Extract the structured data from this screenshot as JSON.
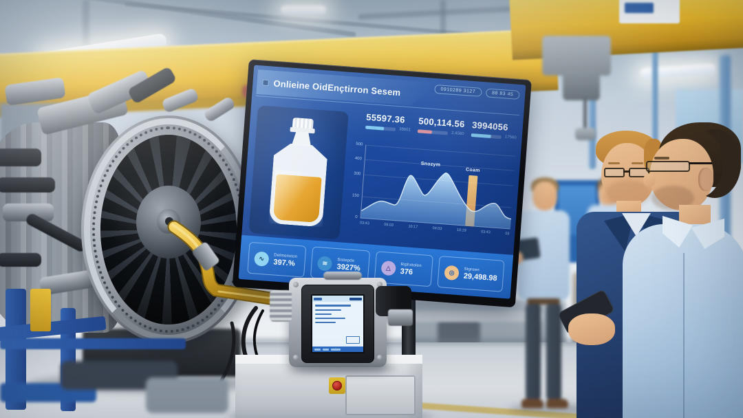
{
  "monitor": {
    "title": "Onlieine OidEnçtirron Sesem",
    "badges": [
      {
        "text": "0910289 3127"
      },
      {
        "text": "88 83 45"
      }
    ],
    "kpis": [
      {
        "value": "55597.36",
        "sub": "38601",
        "bar_color": "#7ec8f0",
        "bar_pct": 62
      },
      {
        "value": "500,114.56",
        "sub": "2,4560",
        "bar_color": "#d68f9b",
        "bar_pct": 48
      },
      {
        "value": "3994056",
        "sub": "17560",
        "bar_color": "#7ec8f0",
        "bar_pct": 66
      }
    ],
    "chart": {
      "type": "area",
      "y_ticks": [
        "500",
        "400",
        "300",
        "150",
        "0"
      ],
      "x_ticks": [
        "03:43",
        "09:03",
        "10:17",
        "04:03",
        "10:19",
        "03:43",
        "03"
      ],
      "annotations": [
        {
          "label": "Snozym"
        },
        {
          "label": "Coam"
        }
      ],
      "series": [
        {
          "name": "oil-condition-trend",
          "x": [
            0,
            0.124,
            0.217,
            0.3,
            0.4,
            0.535,
            0.7,
            0.77,
            0.88,
            0.96,
            1.0
          ],
          "values": [
            50,
            125,
            110,
            305,
            195,
            345,
            130,
            105,
            170,
            85,
            68
          ]
        }
      ],
      "bar_marker": {
        "x": 0.73,
        "value": 345
      },
      "area_color": "#a9d6f5",
      "bar_color": "#e9b36a"
    },
    "stats": [
      {
        "label": "Delmonston",
        "value": "397.%",
        "icon_glyph": "∿",
        "icon_color": "#8fd4f2",
        "glyph_color": "#123a66"
      },
      {
        "label": "Sistepde",
        "value": "3927%",
        "icon_glyph": "≋",
        "icon_color": "#3e8fd0",
        "glyph_color": "#d9ecf7"
      },
      {
        "label": "Riphstolen",
        "value": "376",
        "icon_glyph": "△",
        "icon_color": "#b9aadf",
        "glyph_color": "#5d4f96"
      },
      {
        "label": "Stgreen",
        "value": "29,498.98",
        "icon_glyph": "◎",
        "icon_color": "#eec08a",
        "glyph_color": "#2d62b5"
      }
    ],
    "colors": {
      "screen_bg": "#1b479c",
      "strip": "#2373d4",
      "accent": "#7ec8f0"
    }
  }
}
